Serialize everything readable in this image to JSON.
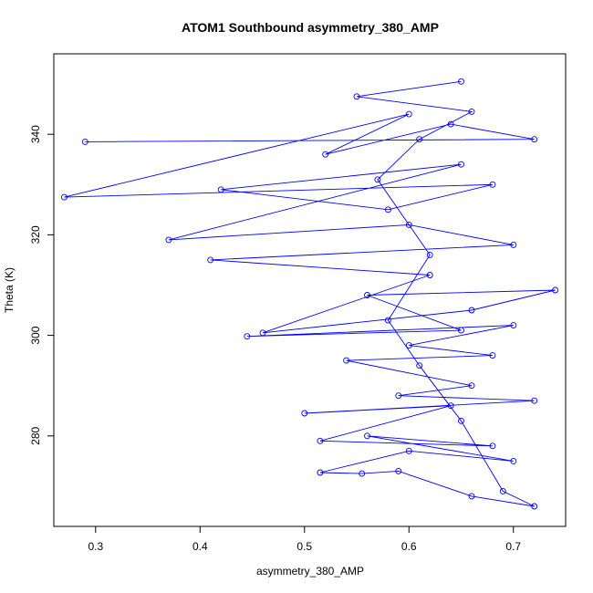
{
  "chart_data": {
    "type": "line",
    "title": "ATOM1 Southbound asymmetry_380_AMP",
    "xlabel": "asymmetry_380_AMP",
    "ylabel": "Theta (K)",
    "xlim": [
      0.26,
      0.75
    ],
    "ylim": [
      262,
      356
    ],
    "xticks": [
      "0.3",
      "0.4",
      "0.5",
      "0.6",
      "0.7"
    ],
    "yticks": [
      "280",
      "300",
      "320",
      "340"
    ],
    "grid": false,
    "legend": "none",
    "series_color": "#0000ff",
    "marker": "open-circle",
    "series": [
      {
        "values": [
          [
            0.29,
            338.5
          ],
          [
            0.72,
            339.0
          ],
          [
            0.64,
            342.0
          ],
          [
            0.52,
            336.0
          ],
          [
            0.6,
            344.0
          ],
          [
            0.27,
            327.5
          ],
          [
            0.68,
            330.0
          ],
          [
            0.58,
            325.0
          ],
          [
            0.42,
            329.0
          ],
          [
            0.65,
            334.0
          ],
          [
            0.37,
            319.0
          ],
          [
            0.6,
            322.0
          ],
          [
            0.7,
            318.0
          ],
          [
            0.41,
            315.0
          ],
          [
            0.62,
            312.0
          ],
          [
            0.46,
            300.5
          ],
          [
            0.66,
            305.0
          ],
          [
            0.74,
            309.0
          ],
          [
            0.56,
            308.0
          ],
          [
            0.65,
            301.0
          ],
          [
            0.445,
            299.8
          ],
          [
            0.7,
            302.0
          ],
          [
            0.6,
            298.0
          ],
          [
            0.68,
            296.0
          ],
          [
            0.54,
            295.0
          ],
          [
            0.66,
            290.0
          ],
          [
            0.59,
            288.0
          ],
          [
            0.72,
            287.0
          ],
          [
            0.5,
            284.5
          ],
          [
            0.64,
            286.0
          ],
          [
            0.515,
            279.0
          ],
          [
            0.68,
            278.0
          ],
          [
            0.56,
            280.0
          ],
          [
            0.7,
            275.0
          ],
          [
            0.6,
            277.0
          ],
          [
            0.515,
            272.7
          ],
          [
            0.555,
            272.5
          ],
          [
            0.59,
            273.0
          ],
          [
            0.66,
            268.0
          ],
          [
            0.72,
            266.0
          ],
          [
            0.69,
            269.0
          ],
          [
            0.65,
            283.0
          ],
          [
            0.61,
            294.0
          ],
          [
            0.58,
            303.0
          ],
          [
            0.62,
            316.0
          ],
          [
            0.57,
            331.0
          ],
          [
            0.61,
            339.0
          ],
          [
            0.66,
            344.5
          ],
          [
            0.55,
            347.5
          ],
          [
            0.65,
            350.5
          ]
        ]
      }
    ]
  }
}
